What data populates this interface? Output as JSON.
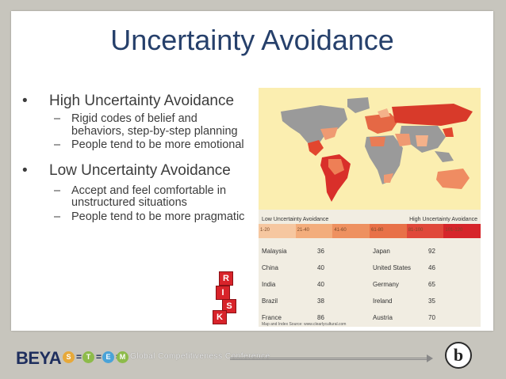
{
  "slide": {
    "title": "Uncertainty Avoidance",
    "bullets": [
      {
        "text": "High Uncertainty Avoidance",
        "subs": [
          "Rigid codes of belief and behaviors, step-by-step planning",
          "People tend to be more emotional"
        ]
      },
      {
        "text": "Low Uncertainty Avoidance",
        "subs": [
          "Accept and feel comfortable in unstructured situations",
          "People tend to be more pragmatic"
        ]
      }
    ],
    "dice_letters": [
      "R",
      "I",
      "S",
      "K"
    ]
  },
  "figure": {
    "legend_low": "Low Uncertainty Avoidance",
    "legend_high": "High Uncertainty Avoidance",
    "scale": [
      {
        "label": "1-20",
        "color": "#f6c7a0"
      },
      {
        "label": "21-40",
        "color": "#f3ad7c"
      },
      {
        "label": "41-60",
        "color": "#ee9160"
      },
      {
        "label": "61-80",
        "color": "#e87148"
      },
      {
        "label": "81-100",
        "color": "#e0483a"
      },
      {
        "label": "101-120",
        "color": "#d6252a"
      }
    ],
    "rows": [
      {
        "c1": "Malaysia",
        "v1": "36",
        "c2": "Japan",
        "v2": "92"
      },
      {
        "c1": "China",
        "v1": "40",
        "c2": "United States",
        "v2": "46"
      },
      {
        "c1": "India",
        "v1": "40",
        "c2": "Germany",
        "v2": "65"
      },
      {
        "c1": "Brazil",
        "v1": "38",
        "c2": "Ireland",
        "v2": "35"
      },
      {
        "c1": "France",
        "v1": "86",
        "c2": "Austria",
        "v2": "70"
      }
    ],
    "source": "Map and Index Source: www.clearlycultural.com"
  },
  "footer": {
    "brand": "BEYA",
    "stem": [
      {
        "letter": "S",
        "color": "#e7a93a"
      },
      {
        "letter": "T",
        "color": "#8dbb4a"
      },
      {
        "letter": "E",
        "color": "#4aa3d8"
      },
      {
        "letter": "M",
        "color": "#8dbb4a"
      }
    ],
    "conference": "Global Competitiveness Conference",
    "logo_letter": "b"
  }
}
